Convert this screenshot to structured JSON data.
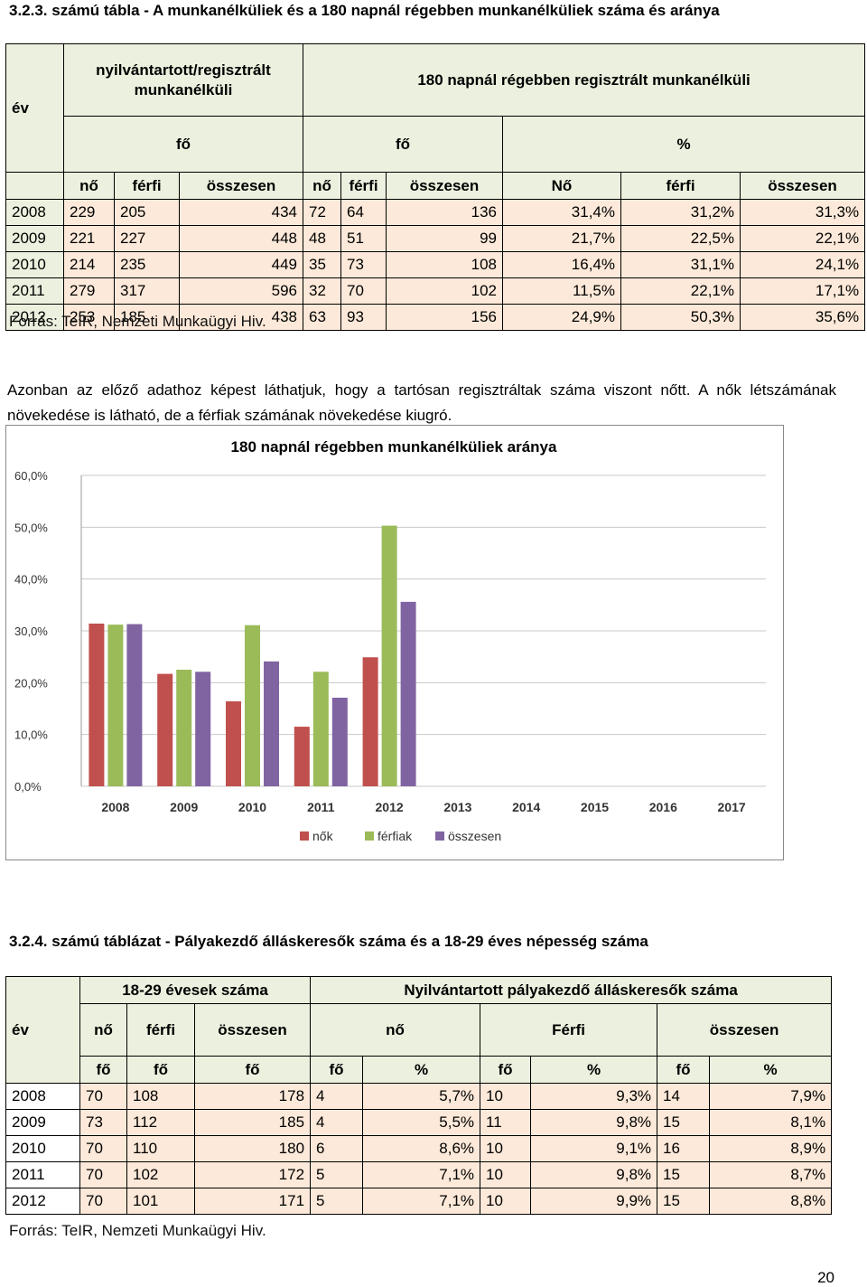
{
  "table1": {
    "title": "3.2.3. számú tábla - A munkanélküliek és a 180 napnál régebben munkanélküliek száma és aránya",
    "h_year": "év",
    "h_group1": "nyilvántartott/regisztrált munkanélküli",
    "h_group2": "180 napnál régebben regisztrált munkanélküli",
    "h_unit_fo1": "fő",
    "h_unit_fo2": "fő",
    "h_unit_pct": "%",
    "cols": [
      "nő",
      "férfi",
      "összesen",
      "nő",
      "férfi",
      "összesen",
      "Nő",
      "férfi",
      "összesen"
    ],
    "rows": [
      [
        "2008",
        "229",
        "205",
        "434",
        "72",
        "64",
        "136",
        "31,4%",
        "31,2%",
        "31,3%"
      ],
      [
        "2009",
        "221",
        "227",
        "448",
        "48",
        "51",
        "99",
        "21,7%",
        "22,5%",
        "22,1%"
      ],
      [
        "2010",
        "214",
        "235",
        "449",
        "35",
        "73",
        "108",
        "16,4%",
        "31,1%",
        "24,1%"
      ],
      [
        "2011",
        "279",
        "317",
        "596",
        "32",
        "70",
        "102",
        "11,5%",
        "22,1%",
        "17,1%"
      ],
      [
        "2012",
        "253",
        "185",
        "438",
        "63",
        "93",
        "156",
        "24,9%",
        "50,3%",
        "35,6%"
      ]
    ],
    "source": "Forrás: TeIR, Nemzeti Munkaügyi Hiv."
  },
  "paragraph": "Azonban az előző adathoz képest láthatjuk, hogy a tartósan regisztráltak száma viszont nőtt. A nők létszámának növekedése is látható, de a férfiak számának növekedése kiugró.",
  "chart_data": {
    "type": "bar",
    "title": "180 napnál régebben munkanélküliek aránya",
    "categories": [
      "2008",
      "2009",
      "2010",
      "2011",
      "2012",
      "2013",
      "2014",
      "2015",
      "2016",
      "2017"
    ],
    "series": [
      {
        "name": "nők",
        "color": "#c0504d",
        "values": [
          31.4,
          21.7,
          16.4,
          11.5,
          24.9,
          null,
          null,
          null,
          null,
          null
        ]
      },
      {
        "name": "férfiak",
        "color": "#9bbb59",
        "values": [
          31.2,
          22.5,
          31.1,
          22.1,
          50.3,
          null,
          null,
          null,
          null,
          null
        ]
      },
      {
        "name": "összesen",
        "color": "#8064a2",
        "values": [
          31.3,
          22.1,
          24.1,
          17.1,
          35.6,
          null,
          null,
          null,
          null,
          null
        ]
      }
    ],
    "yticks": [
      "0,0%",
      "10,0%",
      "20,0%",
      "30,0%",
      "40,0%",
      "50,0%",
      "60,0%"
    ],
    "ylim": [
      0,
      60
    ],
    "grid": true,
    "legend": "bottom"
  },
  "table2": {
    "title": "3.2.4. számú táblázat - Pályakezdő álláskeresők száma és a 18-29 éves népesség száma",
    "h_year": "év",
    "h_group1": "18-29 évesek száma",
    "h_group2": "Nyilvántartott pályakezdő álláskeresők száma",
    "sub1": [
      "nő",
      "férfi",
      "összesen"
    ],
    "sub2": [
      "nő",
      "Férfi",
      "összesen"
    ],
    "units": [
      "fő",
      "fő",
      "fő",
      "fő",
      "%",
      "fő",
      "%",
      "fő",
      "%"
    ],
    "rows": [
      [
        "2008",
        "70",
        "108",
        "178",
        "4",
        "5,7%",
        "10",
        "9,3%",
        "14",
        "7,9%"
      ],
      [
        "2009",
        "73",
        "112",
        "185",
        "4",
        "5,5%",
        "11",
        "9,8%",
        "15",
        "8,1%"
      ],
      [
        "2010",
        "70",
        "110",
        "180",
        "6",
        "8,6%",
        "10",
        "9,1%",
        "16",
        "8,9%"
      ],
      [
        "2011",
        "70",
        "102",
        "172",
        "5",
        "7,1%",
        "10",
        "9,8%",
        "15",
        "8,7%"
      ],
      [
        "2012",
        "70",
        "101",
        "171",
        "5",
        "7,1%",
        "10",
        "9,9%",
        "15",
        "8,8%"
      ]
    ],
    "source": "Forrás: TeIR, Nemzeti Munkaügyi Hiv."
  },
  "page_number": "20"
}
